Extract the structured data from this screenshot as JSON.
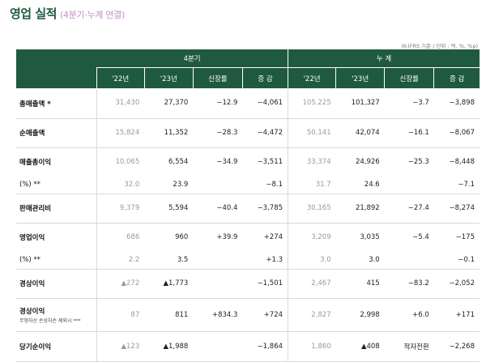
{
  "title": "영업 실적",
  "subtitle": "(4분기·누계 연결)",
  "unit_note": "(K-IFRS 기준 / 단위 : 억, %, %p)",
  "header": {
    "group_q4": "4분기",
    "group_cum": "누 계",
    "cols": [
      "'22년",
      "'23년",
      "신장률",
      "증 감",
      "'22년",
      "'23년",
      "신장률",
      "증 감"
    ]
  },
  "rows": [
    {
      "label": "총매출액 *",
      "cells": [
        "31,430",
        "27,370",
        "−12.9",
        "−4,061",
        "105,225",
        "101,327",
        "−3.7",
        "−3,898"
      ]
    },
    {
      "label": "순매출액",
      "cells": [
        "15,824",
        "11,352",
        "−28.3",
        "−4,472",
        "50,141",
        "42,074",
        "−16.1",
        "−8,067"
      ]
    },
    {
      "label": "매출총이익",
      "cells": [
        "10,065",
        "6,554",
        "−34.9",
        "−3,511",
        "33,374",
        "24,926",
        "−25.3",
        "−8,448"
      ]
    },
    {
      "label": "(%) **",
      "cells": [
        "32.0",
        "23.9",
        "",
        "−8.1",
        "31.7",
        "24.6",
        "",
        "−7.1"
      ]
    },
    {
      "label": "판매관리비",
      "cells": [
        "9,379",
        "5,594",
        "−40.4",
        "−3,785",
        "30,165",
        "21,892",
        "−27.4",
        "−8,274"
      ]
    },
    {
      "label": "영업이익",
      "cells": [
        "686",
        "960",
        "+39.9",
        "+274",
        "3,209",
        "3,035",
        "−5.4",
        "−175"
      ]
    },
    {
      "label": "(%) **",
      "cells": [
        "2.2",
        "3.5",
        "",
        "+1.3",
        "3.0",
        "3.0",
        "",
        "−0.1"
      ]
    },
    {
      "label": "경상이익",
      "cells": [
        "▲272",
        "▲1,773",
        "",
        "−1,501",
        "2,467",
        "415",
        "−83.2",
        "−2,052"
      ]
    },
    {
      "label": "경상이익",
      "note": "무형자산 손상차손 제외시 ***",
      "cells": [
        "87",
        "811",
        "+834.3",
        "+724",
        "2,827",
        "2,998",
        "+6.0",
        "+171"
      ]
    },
    {
      "label": "당기순이익",
      "cells": [
        "▲123",
        "▲1,988",
        "",
        "−1,864",
        "1,860",
        "▲408",
        "적자전환",
        "−2,268"
      ]
    }
  ],
  "colors": {
    "header_bg": "#1f5a3e",
    "title": "#1f5a3e",
    "subtitle": "#c58fc9"
  }
}
